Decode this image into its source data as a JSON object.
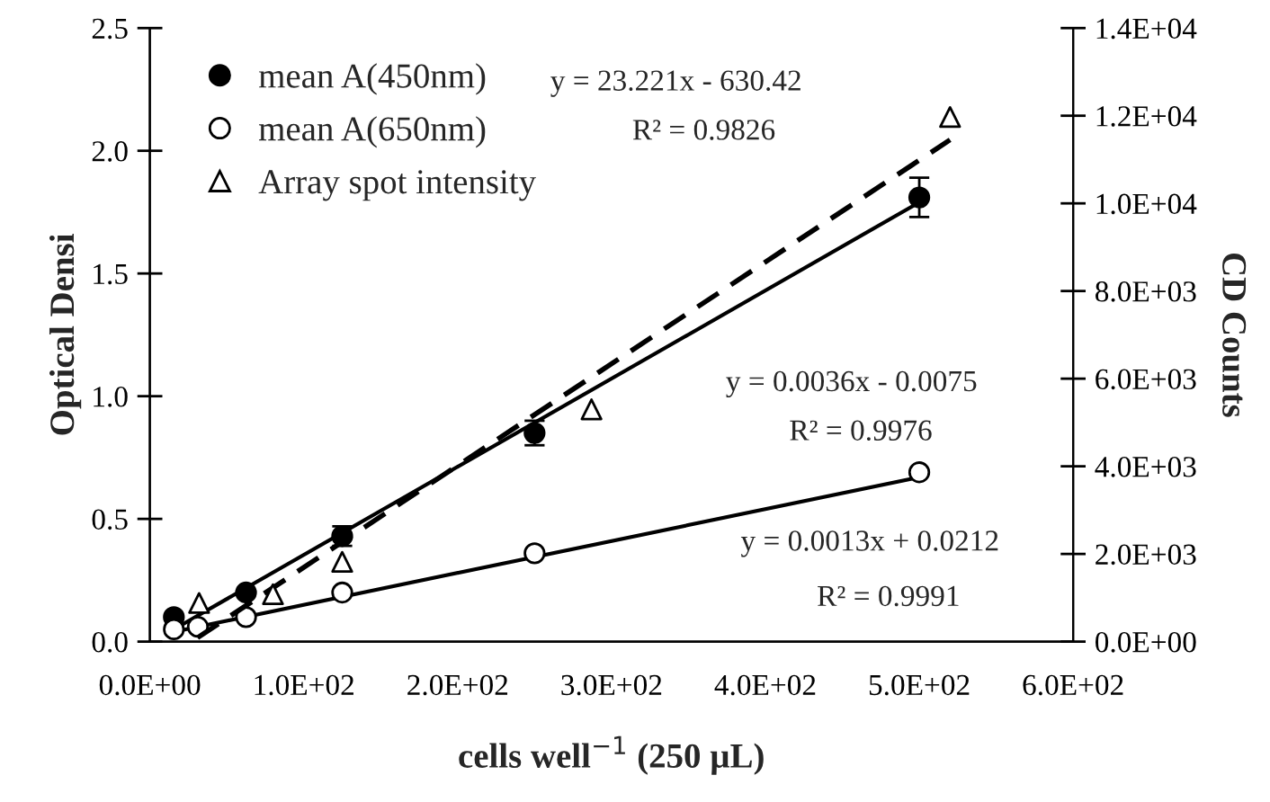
{
  "chart_data": {
    "type": "scatter",
    "xlabel": "cells well$^{−1}$ (250 µL)",
    "ylabel": "Optical Densi",
    "y2label": "CD Counts",
    "xlim": [
      0,
      600
    ],
    "xticks": [
      {
        "value": 0,
        "label": "0.0E+00"
      },
      {
        "value": 100,
        "label": "1.0E+02"
      },
      {
        "value": 200,
        "label": "2.0E+02"
      },
      {
        "value": 300,
        "label": "3.0E+02"
      },
      {
        "value": 400,
        "label": "4.0E+02"
      },
      {
        "value": 500,
        "label": "5.0E+02"
      },
      {
        "value": 600,
        "label": "6.0E+02"
      }
    ],
    "ylim": [
      0,
      2.5
    ],
    "yticks": [
      {
        "value": 0,
        "label": "0.0"
      },
      {
        "value": 0.5,
        "label": "0.5"
      },
      {
        "value": 1.0,
        "label": "1.0"
      },
      {
        "value": 1.5,
        "label": "1.5"
      },
      {
        "value": 2.0,
        "label": "2.0"
      },
      {
        "value": 2.5,
        "label": "2.5"
      }
    ],
    "y2lim": [
      0,
      14000
    ],
    "y2ticks": [
      {
        "value": 0,
        "label": "0.0E+00"
      },
      {
        "value": 2000,
        "label": "2.0E+03"
      },
      {
        "value": 4000,
        "label": "4.0E+03"
      },
      {
        "value": 6000,
        "label": "6.0E+03"
      },
      {
        "value": 8000,
        "label": "8.0E+03"
      },
      {
        "value": 10000,
        "label": "1.0E+04"
      },
      {
        "value": 12000,
        "label": "1.2E+04"
      },
      {
        "value": 14000,
        "label": "1.4E+04"
      }
    ],
    "grid": false,
    "legend": "top left",
    "series": [
      {
        "name": "mean A(450nm)",
        "marker": "circle",
        "color": "#000000",
        "x": [
          15.6,
          62.5,
          125,
          250,
          500
        ],
        "values": [
          0.1,
          0.2,
          0.43,
          0.85,
          1.81
        ],
        "errors": [
          null,
          null,
          0.04,
          0.05,
          0.08
        ]
      },
      {
        "name": "mean A(650nm)",
        "marker": "circle",
        "color": "#000000",
        "x": [
          15.6,
          31.2,
          62.5,
          125,
          250,
          500
        ],
        "values": [
          0.05,
          0.06,
          0.1,
          0.2,
          0.36,
          0.69
        ]
      },
      {
        "name": "Array spot intensity",
        "marker": "triangle",
        "color": "#000000",
        "axis": "y2",
        "x": [
          32,
          80,
          125,
          287,
          520
        ],
        "values": [
          880,
          1080,
          1820,
          5300,
          11970
        ]
      },
      {
        "type": "line",
        "marker": "none",
        "line_style": "solid",
        "color": "#000000",
        "x": [
          15.6,
          500
        ],
        "values": [
          0.05,
          1.79
        ]
      },
      {
        "type": "line",
        "marker": "none",
        "line_style": "solid",
        "color": "#000000",
        "x": [
          15.6,
          500
        ],
        "values": [
          0.04,
          0.67
        ]
      },
      {
        "type": "line",
        "marker": "none",
        "line_style": "dashed",
        "color": "#000000",
        "axis": "y2",
        "x": [
          31,
          520
        ],
        "values": [
          90,
          11450
        ]
      }
    ],
    "annotations": [
      "y = 23.221x - 630.42",
      "R² = 0.9826",
      "y = 0.0036x - 0.0075",
      "R² = 0.9976",
      "y = 0.0013x + 0.0212",
      "R² = 0.9991"
    ]
  }
}
